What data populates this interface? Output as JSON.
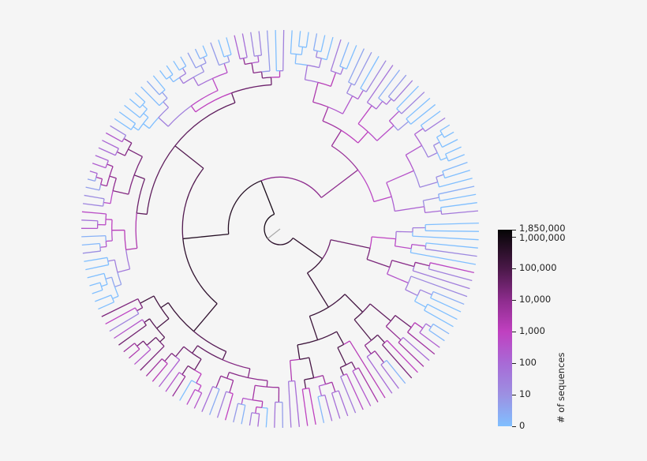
{
  "colorbar": {
    "title": "# of sequences",
    "ticks": [
      {
        "label": "1,850,000",
        "value": 1850000
      },
      {
        "label": "1,000,000",
        "value": 1000000
      },
      {
        "label": "100,000",
        "value": 100000
      },
      {
        "label": "10,000",
        "value": 10000
      },
      {
        "label": "1,000",
        "value": 1000
      },
      {
        "label": "100",
        "value": 100
      },
      {
        "label": "10",
        "value": 10
      },
      {
        "label": "0",
        "value": 0
      }
    ],
    "color_stops": [
      {
        "value": 0,
        "color": "#80bfff"
      },
      {
        "value": 10,
        "color": "#9c90e2"
      },
      {
        "value": 100,
        "color": "#a86ad6"
      },
      {
        "value": 1000,
        "color": "#c040c0"
      },
      {
        "value": 10000,
        "color": "#8c2c8c"
      },
      {
        "value": 100000,
        "color": "#4a1848"
      },
      {
        "value": 1850000,
        "color": "#050505"
      }
    ],
    "scale": "log"
  },
  "tree": {
    "layout": "circular",
    "root_branch_color": "#aaaaaa"
  }
}
